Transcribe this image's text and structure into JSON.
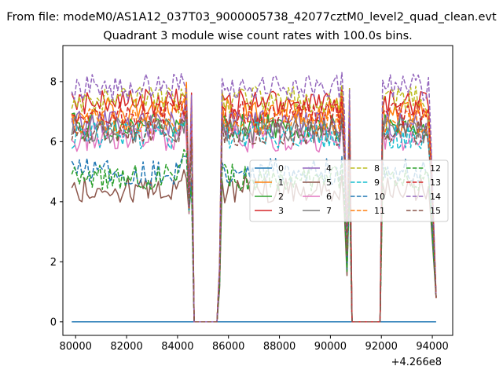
{
  "titles": {
    "suptitle": "From file: modeM0/AS1A12_037T03_9000005738_42077cztM0_level2_quad_clean.evt",
    "axes_title": "Quadrant 3 module wise count rates with 100.0s bins."
  },
  "chart_data": {
    "type": "line",
    "title": "Quadrant 3 module wise count rates with 100.0s bins.",
    "xlabel": "",
    "ylabel": "",
    "x_offset_label": "+4.266e8",
    "xlim": [
      79500,
      94800
    ],
    "ylim": [
      -0.45,
      9.2
    ],
    "x_ticks": [
      80000,
      82000,
      84000,
      86000,
      88000,
      90000,
      92000,
      94000
    ],
    "x_tick_labels": [
      "80000",
      "82000",
      "84000",
      "86000",
      "88000",
      "90000",
      "92000",
      "94000"
    ],
    "y_ticks": [
      0,
      2,
      4,
      6,
      8
    ],
    "y_tick_labels": [
      "0",
      "2",
      "4",
      "6",
      "8"
    ],
    "x_range": [
      79850,
      94150
    ],
    "bin_width": 100,
    "gaps": [
      [
        84550,
        85650
      ],
      [
        90750,
        92000
      ]
    ],
    "legend_columns": 4,
    "legend_location": "center-right",
    "series": [
      {
        "name": "0",
        "color": "#1f77b4",
        "dash": "solid",
        "level": 0.0
      },
      {
        "name": "1",
        "color": "#ff7f0e",
        "dash": "solid",
        "level": 7.0
      },
      {
        "name": "2",
        "color": "#2ca02c",
        "dash": "solid",
        "level": 6.5
      },
      {
        "name": "3",
        "color": "#d62728",
        "dash": "solid",
        "level": 7.3
      },
      {
        "name": "4",
        "color": "#9467bd",
        "dash": "solid",
        "level": 6.6
      },
      {
        "name": "5",
        "color": "#8c564b",
        "dash": "solid",
        "level": 4.4
      },
      {
        "name": "6",
        "color": "#e377c2",
        "dash": "solid",
        "level": 6.1
      },
      {
        "name": "7",
        "color": "#7f7f7f",
        "dash": "solid",
        "level": 6.4
      },
      {
        "name": "8",
        "color": "#bcbd22",
        "dash": "dashed",
        "level": 7.4
      },
      {
        "name": "9",
        "color": "#17becf",
        "dash": "dashed",
        "level": 6.2
      },
      {
        "name": "10",
        "color": "#1f77b4",
        "dash": "dashed",
        "level": 5.0
      },
      {
        "name": "11",
        "color": "#ff7f0e",
        "dash": "dashed",
        "level": 6.7
      },
      {
        "name": "12",
        "color": "#2ca02c",
        "dash": "dashed",
        "level": 4.8
      },
      {
        "name": "13",
        "color": "#d62728",
        "dash": "dashed",
        "level": 6.9
      },
      {
        "name": "14",
        "color": "#9467bd",
        "dash": "dashed",
        "level": 7.8
      },
      {
        "name": "15",
        "color": "#8c564b",
        "dash": "dashed",
        "level": 6.3
      }
    ]
  }
}
